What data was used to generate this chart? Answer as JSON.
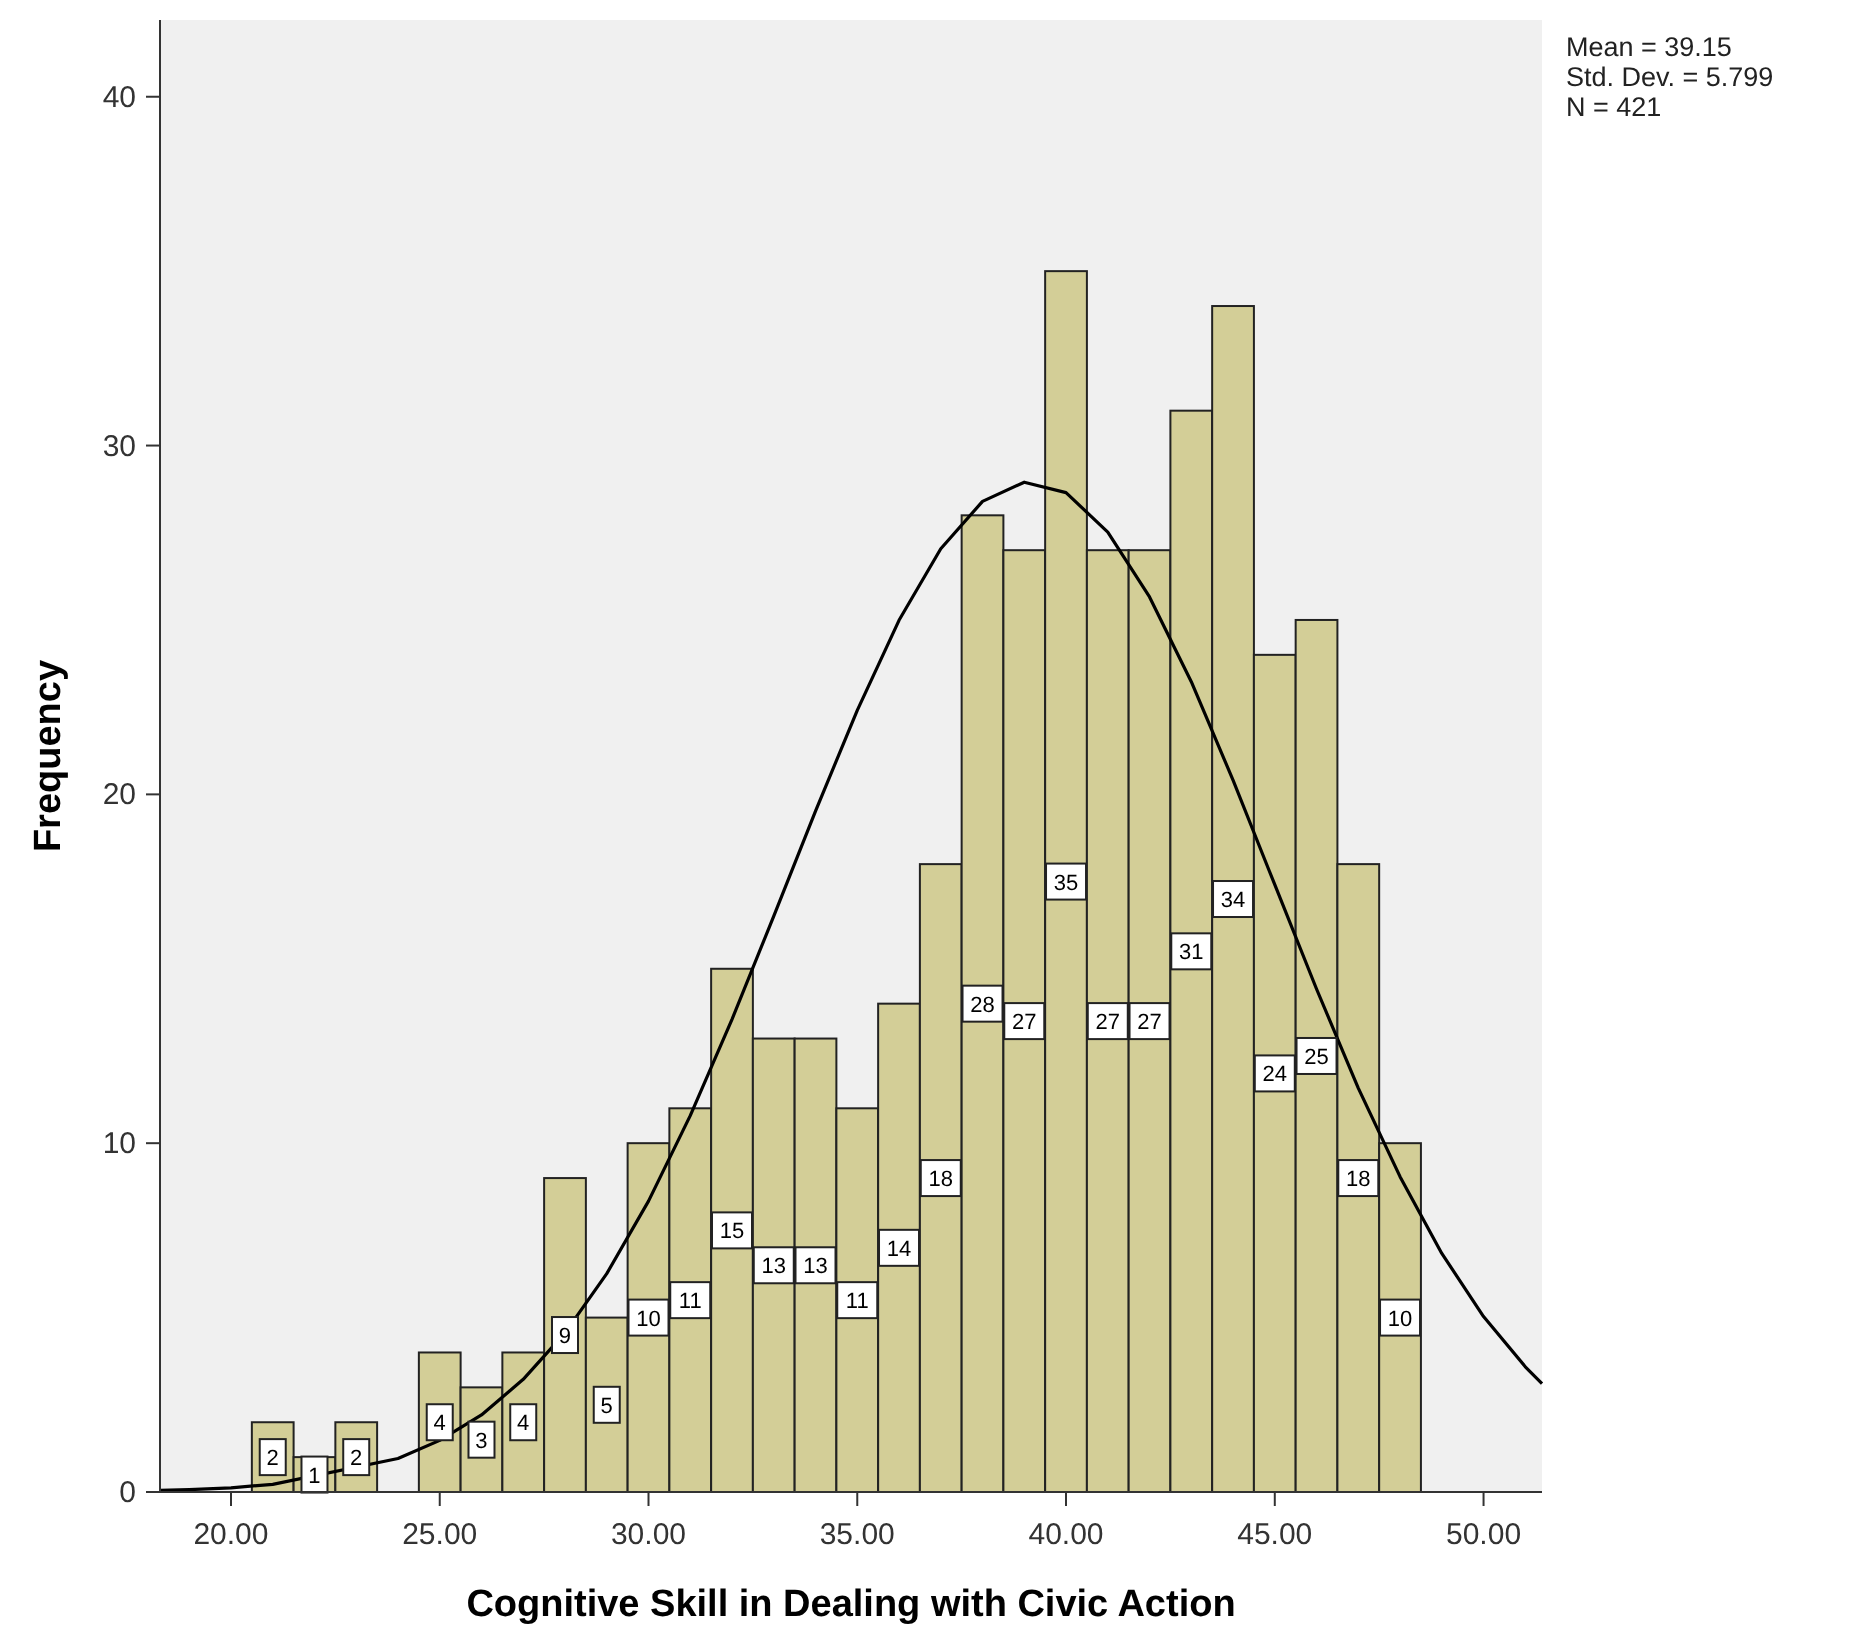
{
  "chart_data": {
    "type": "histogram",
    "xlabel": "Cognitive Skill in Dealing with Civic Action",
    "ylabel": "Frequency",
    "annotations": [
      "Mean = 39.15\nStd. Dev. = 5.799\nN = 421"
    ],
    "xlim": [
      18.3,
      51.4
    ],
    "ylim": [
      0,
      42.2
    ],
    "xticks": [
      {
        "value": 20,
        "label": "20.00"
      },
      {
        "value": 25,
        "label": "25.00"
      },
      {
        "value": 30,
        "label": "30.00"
      },
      {
        "value": 35,
        "label": "35.00"
      },
      {
        "value": 40,
        "label": "40.00"
      },
      {
        "value": 45,
        "label": "45.00"
      },
      {
        "value": 50,
        "label": "50.00"
      }
    ],
    "yticks": [
      0,
      10,
      20,
      30,
      40
    ],
    "grid": false,
    "series": [
      {
        "color": "#d3ce97",
        "bins": [
          20.5,
          21.5,
          22.5,
          23.5,
          24.5,
          25.5,
          26.5,
          27.5,
          28.5,
          29.5,
          30.5,
          31.5,
          32.5,
          33.5,
          34.5,
          35.5,
          36.5,
          37.5,
          38.5,
          39.5,
          40.5,
          41.5,
          42.5,
          43.5,
          44.5,
          45.5,
          46.5,
          47.5,
          48.5
        ],
        "values": [
          2,
          1,
          2,
          0,
          4,
          3,
          4,
          9,
          5,
          10,
          11,
          15,
          13,
          13,
          11,
          14,
          18,
          28,
          27,
          35,
          27,
          27,
          31,
          34,
          24,
          25,
          18,
          10
        ],
        "value_labels": [
          "2",
          "1",
          "2",
          null,
          "4",
          "3",
          "4",
          "9",
          "5",
          "10",
          "11",
          "15",
          "13",
          "13",
          "11",
          "14",
          "18",
          "28",
          "27",
          "35",
          "27",
          "27",
          "31",
          "34",
          "24",
          "25",
          "18",
          "10"
        ]
      },
      {
        "type": "line",
        "color": "#000000",
        "marker": "none",
        "line_style": "solid",
        "x": [
          18.3,
          19,
          20,
          21,
          24,
          25,
          26,
          27,
          28,
          29,
          30,
          31,
          32,
          33,
          34,
          35,
          36,
          37,
          38,
          39,
          40,
          41,
          42,
          43,
          44,
          45,
          46,
          47,
          48,
          49,
          50,
          51,
          51.4
        ],
        "values": [
          0.05,
          0.07,
          0.12,
          0.22,
          0.96,
          1.48,
          2.21,
          3.23,
          4.56,
          6.26,
          8.34,
          10.79,
          13.55,
          16.51,
          19.52,
          22.41,
          24.99,
          27.04,
          28.4,
          28.95,
          28.65,
          27.52,
          25.66,
          23.23,
          20.41,
          17.41,
          14.42,
          11.58,
          9.04,
          6.84,
          5.03,
          3.59,
          3.11
        ]
      }
    ]
  }
}
